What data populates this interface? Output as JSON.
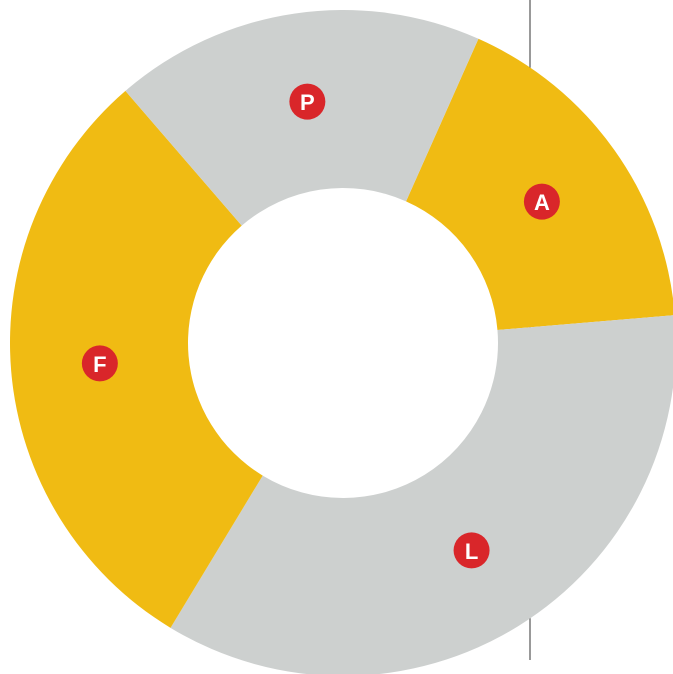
{
  "chart_data": {
    "type": "donut",
    "categories": [
      "A",
      "L",
      "F",
      "P"
    ],
    "values": [
      17,
      35,
      30,
      18
    ],
    "colors": [
      "#f0bb13",
      "#cdd0cf",
      "#f0bb13",
      "#cdd0cf"
    ],
    "label_color": "#d9262a"
  }
}
